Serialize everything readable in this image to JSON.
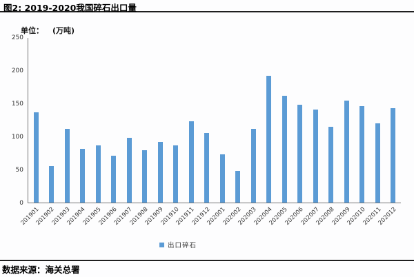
{
  "header": {
    "title": "图2: 2019-2020我国碎石出口量"
  },
  "chart": {
    "unit_label": "单位：",
    "unit_value": "(万吨)",
    "legend_label": "出口碎石"
  },
  "footer": {
    "source": "数据来源：海关总署"
  },
  "colors": {
    "bar": "#5B9BD5",
    "axis": "#737373",
    "rule": "#1f1f1f"
  },
  "chart_data": {
    "type": "bar",
    "title": "2019-2020我国碎石出口量",
    "xlabel": "",
    "ylabel": "万吨",
    "ylim": [
      0,
      250
    ],
    "yticks": [
      0,
      50,
      100,
      150,
      200,
      250
    ],
    "grid": false,
    "legend_position": "bottom",
    "categories": [
      "201901",
      "201902",
      "201903",
      "201904",
      "201905",
      "201906",
      "201907",
      "201908",
      "201909",
      "201910",
      "201911",
      "201912",
      "202001",
      "202002",
      "202003",
      "202004",
      "202005",
      "202006",
      "202007",
      "202008",
      "202009",
      "202010",
      "202011",
      "202012"
    ],
    "series": [
      {
        "name": "出口碎石",
        "values": [
          137,
          55,
          111,
          81,
          87,
          71,
          98,
          79,
          92,
          86,
          123,
          105,
          73,
          48,
          112,
          192,
          161,
          148,
          141,
          115,
          154,
          146,
          120,
          143
        ]
      }
    ]
  }
}
